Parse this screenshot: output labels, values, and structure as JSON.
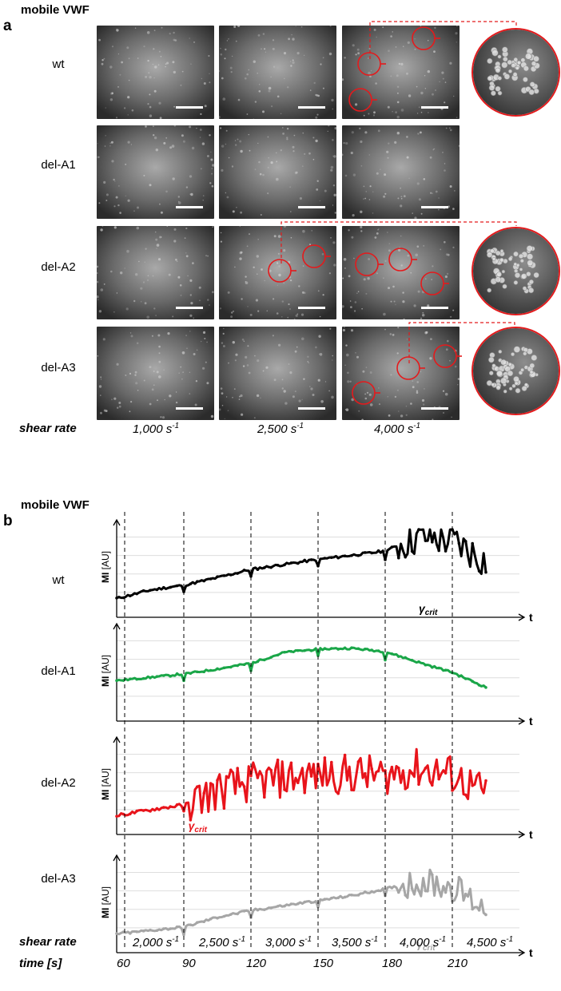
{
  "panel_a": {
    "letter": "a",
    "title": "mobile VWF",
    "rows": [
      {
        "label": "wt"
      },
      {
        "label": "del-A1"
      },
      {
        "label": "del-A2"
      },
      {
        "label": "del-A3"
      }
    ],
    "shear_label": "shear rate",
    "columns": [
      {
        "base": "1,000 s",
        "exp": "-1"
      },
      {
        "base": "2,500 s",
        "exp": "-1"
      },
      {
        "base": "4,000 s",
        "exp": "-1"
      }
    ]
  },
  "panel_b": {
    "letter": "b",
    "title": "mobile VWF",
    "y_label_bold": "MI",
    "y_label_rest": " [AU]",
    "x_axis_letter": "t",
    "crit_symbol": "γ",
    "crit_sub": "crit",
    "colors": {
      "wt": "#000000",
      "del-A1": "#1aa648",
      "del-A2": "#e8141b",
      "del-A3": "#a6a6a6"
    },
    "rows": [
      {
        "label": "wt"
      },
      {
        "label": "del-A1"
      },
      {
        "label": "del-A2"
      },
      {
        "label": "del-A3"
      }
    ],
    "shear_label": "shear rate",
    "time_label": "time [s]",
    "shear_rates": [
      {
        "base": "2,000 s",
        "exp": "-1"
      },
      {
        "base": "2,500 s",
        "exp": "-1"
      },
      {
        "base": "3,000 s",
        "exp": "-1"
      },
      {
        "base": "3,500 s",
        "exp": "-1"
      },
      {
        "base": "4,000 s",
        "exp": "-1"
      },
      {
        "base": "4,500 s",
        "exp": "-1"
      }
    ],
    "times": [
      "60",
      "90",
      "120",
      "150",
      "180",
      "210"
    ]
  },
  "chart_data": [
    {
      "type": "line",
      "x": [
        60,
        75,
        90,
        105,
        120,
        135,
        150,
        165,
        180,
        195,
        210,
        225
      ],
      "xlabel": "t",
      "ylabel": "MI [AU]",
      "series": [
        {
          "name": "wt",
          "values": [
            1.5,
            2.5,
            3.1,
            4.0,
            5.0,
            5.6,
            6.2,
            6.7,
            7.2,
            9.0,
            8.5,
            6.0
          ]
        }
      ]
    },
    {
      "type": "line",
      "x": [
        60,
        75,
        90,
        105,
        120,
        135,
        150,
        165,
        180,
        195,
        210,
        225
      ],
      "xlabel": "t",
      "ylabel": "MI [AU]",
      "series": [
        {
          "name": "del-A1",
          "values": [
            4.1,
            4.5,
            4.9,
            5.5,
            6.2,
            7.5,
            7.9,
            8.0,
            7.6,
            6.3,
            5.1,
            3.3
          ]
        }
      ]
    },
    {
      "type": "line",
      "x": [
        60,
        75,
        90,
        105,
        120,
        135,
        150,
        165,
        180,
        195,
        210,
        225
      ],
      "xlabel": "t",
      "ylabel": "MI [AU]",
      "series": [
        {
          "name": "del-A2",
          "values": [
            1.5,
            2.2,
            2.8,
            4.5,
            5.5,
            6.0,
            6.5,
            6.5,
            6.4,
            7.2,
            6.5,
            4.0
          ]
        }
      ]
    },
    {
      "type": "line",
      "x": [
        60,
        75,
        90,
        105,
        120,
        135,
        150,
        165,
        180,
        195,
        210,
        225
      ],
      "xlabel": "t",
      "ylabel": "MI [AU]",
      "series": [
        {
          "name": "del-A3",
          "values": [
            1.5,
            1.9,
            2.3,
            3.5,
            4.3,
            4.9,
            5.5,
            6.1,
            6.9,
            7.8,
            7.2,
            4.5
          ]
        }
      ]
    }
  ]
}
